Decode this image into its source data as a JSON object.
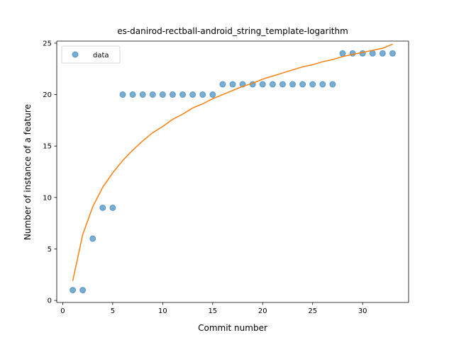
{
  "chart_data": {
    "type": "scatter",
    "title": "es-danirod-rectball-android_string_template-logarithm",
    "xlabel": "Commit number",
    "ylabel": "Number of instance of a feature",
    "xlim": [
      -0.6,
      34.6
    ],
    "ylim": [
      -0.2,
      25.2
    ],
    "xticks": [
      0,
      5,
      10,
      15,
      20,
      25,
      30
    ],
    "yticks": [
      0,
      5,
      10,
      15,
      20,
      25
    ],
    "legend": {
      "placement": "top-left",
      "entries": [
        "data"
      ]
    },
    "grid": false,
    "series": [
      {
        "name": "data",
        "type": "scatter",
        "color": "#1f77b4",
        "x": [
          1,
          2,
          3,
          4,
          5,
          6,
          7,
          8,
          9,
          10,
          11,
          12,
          13,
          14,
          15,
          16,
          17,
          18,
          19,
          20,
          21,
          22,
          23,
          24,
          25,
          26,
          27,
          28,
          29,
          30,
          31,
          32,
          33
        ],
        "y": [
          1,
          1,
          6,
          9,
          9,
          20,
          20,
          20,
          20,
          20,
          20,
          20,
          20,
          20,
          20,
          21,
          21,
          21,
          21,
          21,
          21,
          21,
          21,
          21,
          21,
          21,
          21,
          24,
          24,
          24,
          24,
          24,
          24
        ]
      },
      {
        "type": "line",
        "color": "#ff7f0e",
        "x": [
          1,
          2,
          3,
          4,
          5,
          6,
          7,
          8,
          9,
          10,
          11,
          12,
          13,
          14,
          15,
          16,
          17,
          18,
          19,
          20,
          21,
          22,
          23,
          24,
          25,
          26,
          27,
          28,
          29,
          30,
          31,
          32,
          33
        ],
        "y": [
          1.9,
          6.4,
          9.1,
          11.0,
          12.4,
          13.6,
          14.6,
          15.5,
          16.3,
          16.9,
          17.6,
          18.1,
          18.7,
          19.1,
          19.6,
          20.0,
          20.4,
          20.8,
          21.1,
          21.5,
          21.8,
          22.1,
          22.4,
          22.7,
          22.9,
          23.2,
          23.4,
          23.7,
          23.9,
          24.1,
          24.3,
          24.5,
          24.9
        ]
      }
    ]
  }
}
